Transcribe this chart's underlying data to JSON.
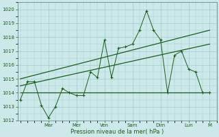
{
  "title": "",
  "xlabel": "Pression niveau de la mer( hPa )",
  "ylim": [
    1012,
    1020.5
  ],
  "yticks": [
    1012,
    1013,
    1014,
    1015,
    1016,
    1017,
    1018,
    1019,
    1020
  ],
  "day_labels": [
    "Mar",
    "Mer",
    "Ven",
    "Sam",
    "Dim",
    "Lun",
    "M"
  ],
  "day_positions": [
    2,
    4,
    6,
    8,
    10,
    12,
    13.5
  ],
  "background_color": "#cce8e8",
  "grid_color": "#99cccc",
  "line_color": "#1a5c1a",
  "jagged_x": [
    0.0,
    0.5,
    1.0,
    1.5,
    2.0,
    2.5,
    3.0,
    3.5,
    4.0,
    4.5,
    5.0,
    5.5,
    6.0,
    6.5,
    7.0,
    7.5,
    8.0,
    8.5,
    9.0,
    9.5,
    10.0,
    10.5,
    11.0,
    11.5,
    12.0,
    12.5,
    13.0,
    13.5
  ],
  "jagged_y": [
    1013.5,
    1014.8,
    1014.8,
    1013.1,
    1012.2,
    1013.0,
    1014.3,
    1014.0,
    1013.8,
    1013.8,
    1015.5,
    1015.1,
    1017.8,
    1015.1,
    1017.2,
    1017.3,
    1017.5,
    1018.5,
    1019.9,
    1018.5,
    1017.8,
    1014.0,
    1016.7,
    1017.0,
    1015.7,
    1015.5,
    1014.0,
    1014.0
  ],
  "flat_line_x": [
    0,
    10.0,
    13.5
  ],
  "flat_line_y": [
    1014.0,
    1014.0,
    1014.0
  ],
  "trend2_x": [
    0,
    13.5
  ],
  "trend2_y": [
    1014.5,
    1017.5
  ],
  "trend3_x": [
    0,
    13.5
  ],
  "trend3_y": [
    1015.0,
    1018.5
  ],
  "xlim": [
    -0.2,
    14.0
  ],
  "figsize": [
    3.2,
    2.0
  ],
  "dpi": 100
}
